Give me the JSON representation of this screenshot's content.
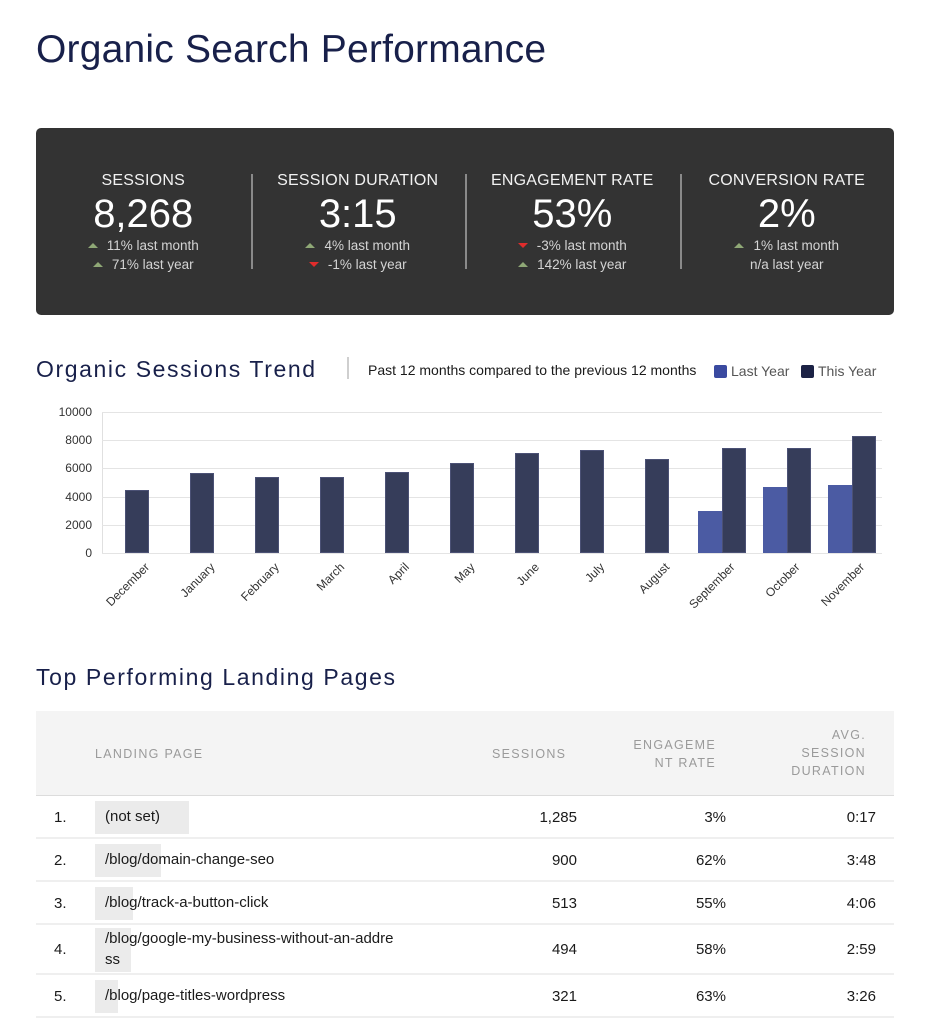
{
  "page": {
    "title": "Organic Search Performance"
  },
  "kpis": [
    {
      "label": "SESSIONS",
      "value": "8,268",
      "changes": [
        {
          "dir": "up",
          "text": "11% last month"
        },
        {
          "dir": "up",
          "text": "71% last year"
        }
      ]
    },
    {
      "label": "SESSION DURATION",
      "value": "3:15",
      "changes": [
        {
          "dir": "up",
          "text": "4% last month"
        },
        {
          "dir": "down",
          "text": "-1% last year"
        }
      ]
    },
    {
      "label": "ENGAGEMENT RATE",
      "value": "53%",
      "changes": [
        {
          "dir": "down",
          "text": "-3% last month"
        },
        {
          "dir": "up",
          "text": "142% last year"
        }
      ]
    },
    {
      "label": "CONVERSION RATE",
      "value": "2%",
      "changes": [
        {
          "dir": "up",
          "text": "1% last month"
        },
        {
          "dir": "none",
          "text": "n/a last year"
        }
      ]
    }
  ],
  "trend": {
    "title": "Organic Sessions Trend",
    "subtitle": "Past 12 months compared to the previous 12 months",
    "legend": [
      {
        "label": "Last Year",
        "color": "#3a4aa0"
      },
      {
        "label": "This Year",
        "color": "#1c2245"
      }
    ]
  },
  "chart_data": {
    "type": "bar",
    "title": "Organic Sessions Trend",
    "subtitle": "Past 12 months compared to the previous 12 months",
    "categories": [
      "December",
      "January",
      "February",
      "March",
      "April",
      "May",
      "June",
      "July",
      "August",
      "September",
      "October",
      "November"
    ],
    "series": [
      {
        "name": "Last Year",
        "color": "#4b5ba3",
        "values": [
          null,
          null,
          null,
          null,
          null,
          null,
          null,
          null,
          null,
          2980,
          4660,
          4840
        ]
      },
      {
        "name": "This Year",
        "color": "#363d5a",
        "values": [
          4480,
          5650,
          5400,
          5370,
          5760,
          6400,
          7080,
          7300,
          6690,
          7480,
          7440,
          8268
        ]
      }
    ],
    "xlabel": "",
    "ylabel": "",
    "ylim": [
      0,
      10000
    ],
    "yticks": [
      0,
      2000,
      4000,
      6000,
      8000,
      10000
    ],
    "grid": true,
    "legend_position": "top-right"
  },
  "landing_pages": {
    "title": "Top Performing Landing Pages",
    "columns": {
      "page": "LANDING PAGE",
      "sessions": "SESSIONS",
      "engagement": [
        "ENGAGEME",
        "NT RATE"
      ],
      "duration": [
        "AVG.",
        "SESSION",
        "DURATION"
      ]
    },
    "rows": [
      {
        "rank": "1.",
        "page": "(not set)",
        "sessions": "1,285",
        "engagement": "3%",
        "duration": "0:17"
      },
      {
        "rank": "2.",
        "page": "/blog/domain-change-seo",
        "sessions": "900",
        "engagement": "62%",
        "duration": "3:48"
      },
      {
        "rank": "3.",
        "page": "/blog/track-a-button-click",
        "sessions": "513",
        "engagement": "55%",
        "duration": "4:06"
      },
      {
        "rank": "4.",
        "page": "/blog/google-my-business-without-an-address",
        "page_lines": [
          "/blog/google-my-business-without-an-addre",
          "ss"
        ],
        "sessions": "494",
        "engagement": "58%",
        "duration": "2:59"
      },
      {
        "rank": "5.",
        "page": "/blog/page-titles-wordpress",
        "sessions": "321",
        "engagement": "63%",
        "duration": "3:26"
      }
    ]
  }
}
